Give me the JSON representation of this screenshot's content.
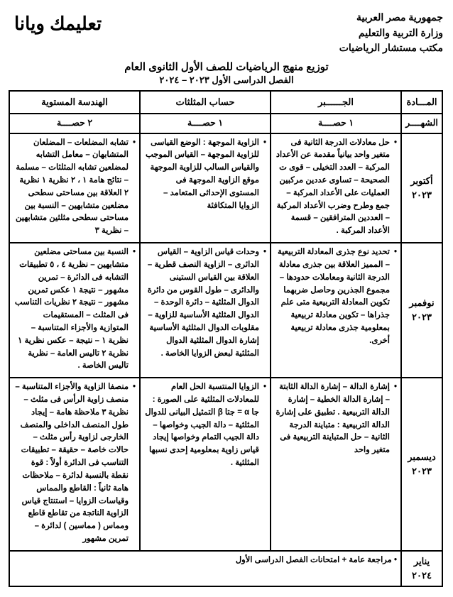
{
  "header": {
    "line1": "جمهورية مصر العربية",
    "line2": "وزارة التربية والتعليم",
    "line3": "مكتب مستشار الرياضيات",
    "watermark": "تعليمك ويانا",
    "title": "توزيع منهج الرياضيات للصف الأول الثانوى العام",
    "subtitle": "الفصل الدراسى الأول ٢٠٢٣ – ٢٠٢٤"
  },
  "columns": {
    "c0": "المـــادة",
    "c1": "الجــــــبر",
    "c2": "حساب المثلثات",
    "c3": "الهندسة المستوية"
  },
  "periods": {
    "label": "الشهــــر",
    "p1": "١ حصــــة",
    "p2": "١ حصــــة",
    "p3": "٢ حصــــة"
  },
  "months": {
    "m1": "أكتوبر ٢٠٢٣",
    "m2": "نوفمبر ٢٠٢٣",
    "m3": "ديسمبر ٢٠٢٣",
    "m4": "يناير ٢٠٢٤"
  },
  "row1": {
    "algebra": "حل معادلات الدرجة الثانية فى متغير واحد بيانياً مقدمة عن الأعداد المركبة – العدد التخيلى – قوى ت الصحيحة – تساوى عددين مركبين العمليات على الأعداد المركبة – جمع وطرح وضرب الأعداد المركبة – العددين المترافقين – قسمة الأعداد المركبة .",
    "trig": "الزاوية الموجهة : الوضع القياسى للزاوية الموجهة – القياس الموجب والقياس السالب للزاوية الموجهة موقع الزاوية الموجهة فى المستوى الإحداثى المتعامد – الزوايا المتكافئة",
    "geom": "تشابه المضلعات – المضلعان المتشابهان – معامل التشابه لمضلعين تشابه المثلثات – مسلمة – نتائج هامة ١ ، ٢  نظرية ١  نظرية ٢  العلاقة بين مساحتى سطحى مضلعين متشابهين – النسبة بين مساحتى سطحى مثلثين متشابهين – نظرية ٣"
  },
  "row2": {
    "algebra": "تحديد نوع جذرى المعادلة التربيعية – المميز العلاقة بين جذرى معادلة الدرجة الثانية ومعاملات حدودها – مجموع الجذرين وحاصل ضربهما  تكوين المعادلة التربيعية متى علم جذراها – تكوين معادلة تربيعية بمعلومية جذرى معادلة تربيعية أخرى.",
    "trig": "وحدات قياس الزاوية – القياس الدائرى – الزاوية النصف قطرية – العلاقة بين القياس الستينى والدائرى – طول القوس من دائرة  الدوال المثلثية – دائرة الوحدة – الدوال المثلثية الأساسية للزاوية – مقلوبات الدوال المثلثية الأساسية  إشارة الدوال المثلثية الدوال المثلثية لبعض الزوايا الخاصة .",
    "geom": "النسبة بين مساحتى مضلعين متشابهين – نظرية ٤ ، ٥  تطبيقات التشابه فى الدائرة – تمرين مشهور – نتيجة ١  عكس تمرين مشهور – نتيجة ٢  نظريات التناسب فى المثلث – المستقيمات المتوازية والأجزاء المتناسبة – نظرية ١ – نتيجة – عكس نظرية ١  نظرية ٢ تاليس العامة – نظرية تاليس الخاصة ."
  },
  "row3": {
    "algebra": "إشارة الدالة – إشارة الدالة الثابتة – إشارة الدالة الخطية – إشارة الدالة التربيعية .  تطبيق على إشارة الدالة التربيعية : متباينة الدرجة الثانية – حل المتباينة التربيعية فى متغير واحد",
    "trig": "الزوايا المنتسبة  الحل العام للمعادلات المثلثية على الصورة :  جا α = جتا β  التمثيل البيانى للدوال المثلثية – دالة الجيب وخواصها – دالة الجيب التمام وخواصها  إيجاد قياس زاوية بمعلومية إحدى نسبها المثلثية .",
    "geom": "منصفا الزاوية والأجزاء المتناسبة – منصف زاوية الرأس فى مثلث – نظرية ٣  ملاحظة هامة – إيجاد طول المنصف الداخلى والمنصف الخارجى لزاوية رأس مثلث – حالات خاصة – حقيقة –  تطبيقات التناسب فى الدائرة  أولاً : قوة نقطة بالنسبة لدائرة – ملاحظات هامة  ثانياً : القاطع والمماس وقياسات الزوايا – استنتاج قياس الزاوية الناتجة من تقاطع قاطع ومماس ( مماسين ) لدائرة – تمرين مشهور"
  },
  "finalRow": "• مراجعة عامة + امتحانات الفصل الدراسى الأول"
}
